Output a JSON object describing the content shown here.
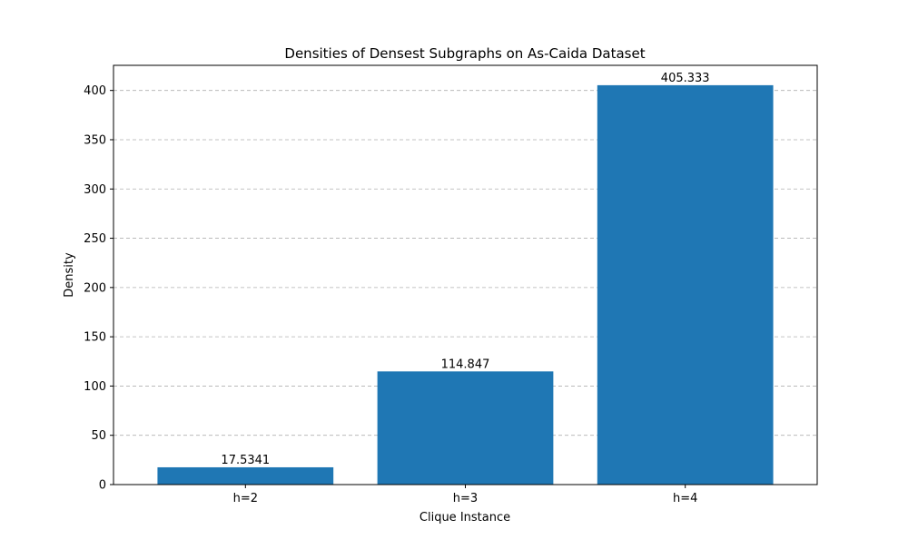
{
  "chart_data": {
    "type": "bar",
    "title": "Densities of Densest Subgraphs on As-Caida Dataset",
    "xlabel": "Clique Instance",
    "ylabel": "Density",
    "categories": [
      "h=2",
      "h=3",
      "h=4"
    ],
    "values": [
      17.5341,
      114.847,
      405.333
    ],
    "data_labels": [
      "17.5341",
      "114.847",
      "405.333"
    ],
    "ylim": [
      0,
      425.5
    ],
    "yticks": [
      0,
      50,
      100,
      150,
      200,
      250,
      300,
      350,
      400
    ],
    "grid": "y-dashed",
    "bar_color": "#1f77b4",
    "grid_color": "#b0b0b0"
  }
}
